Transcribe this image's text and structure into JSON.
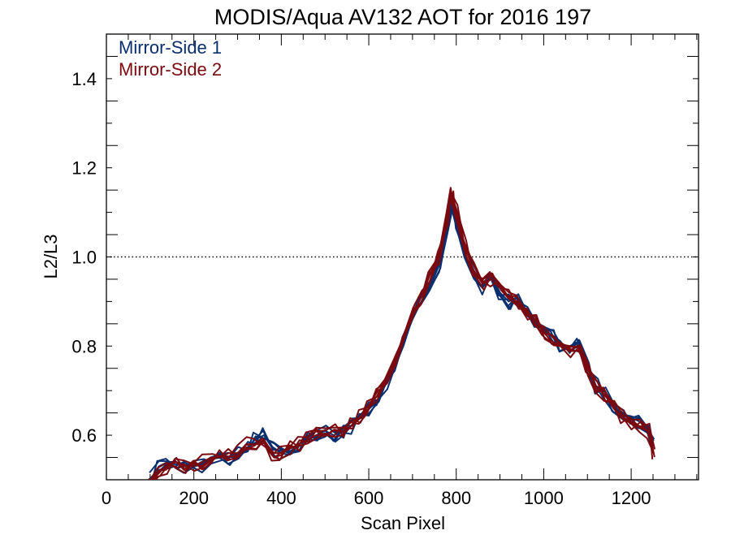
{
  "chart_data": {
    "type": "line",
    "title": "MODIS/Aqua AV132 AOT for 2016 197",
    "xlabel": "Scan Pixel",
    "ylabel": "L2/L3",
    "xlim": [
      0,
      1354
    ],
    "ylim": [
      0.5,
      1.5
    ],
    "x_ticks": [
      0,
      200,
      400,
      600,
      800,
      1000,
      1200
    ],
    "y_ticks": [
      0.6,
      0.8,
      1.0,
      1.2,
      1.4
    ],
    "x_tick_labels": [
      "0",
      "200",
      "400",
      "600",
      "800",
      "1000",
      "1200"
    ],
    "y_tick_labels": [
      "0.6",
      "0.8",
      "1.0",
      "1.2",
      "1.4"
    ],
    "reference_line": {
      "y": 1.0,
      "style": "dotted"
    },
    "legend_position": "top-left",
    "x": [
      100,
      120,
      140,
      160,
      180,
      200,
      220,
      240,
      260,
      280,
      300,
      320,
      340,
      360,
      380,
      400,
      420,
      440,
      460,
      480,
      500,
      520,
      540,
      560,
      580,
      600,
      620,
      640,
      660,
      680,
      700,
      720,
      740,
      760,
      780,
      790,
      800,
      820,
      840,
      860,
      880,
      900,
      920,
      940,
      960,
      980,
      1000,
      1020,
      1040,
      1060,
      1080,
      1100,
      1120,
      1140,
      1160,
      1180,
      1200,
      1220,
      1240,
      1250
    ],
    "series": [
      {
        "name": "Mirror-Side 1",
        "color": "#0a2f6e",
        "values": [
          0.5,
          0.53,
          0.54,
          0.54,
          0.53,
          0.54,
          0.53,
          0.55,
          0.55,
          0.55,
          0.56,
          0.57,
          0.59,
          0.6,
          0.57,
          0.56,
          0.57,
          0.58,
          0.59,
          0.6,
          0.61,
          0.6,
          0.61,
          0.62,
          0.64,
          0.66,
          0.68,
          0.72,
          0.76,
          0.81,
          0.86,
          0.9,
          0.94,
          0.98,
          1.06,
          1.12,
          1.08,
          1.0,
          0.96,
          0.93,
          0.96,
          0.92,
          0.9,
          0.91,
          0.88,
          0.86,
          0.84,
          0.82,
          0.8,
          0.79,
          0.8,
          0.76,
          0.71,
          0.7,
          0.66,
          0.65,
          0.64,
          0.63,
          0.62,
          0.58
        ]
      },
      {
        "name": "Mirror-Side 2",
        "color": "#7a0a0f",
        "values": [
          0.5,
          0.52,
          0.53,
          0.54,
          0.53,
          0.53,
          0.54,
          0.55,
          0.55,
          0.56,
          0.56,
          0.58,
          0.58,
          0.59,
          0.56,
          0.56,
          0.57,
          0.58,
          0.59,
          0.6,
          0.6,
          0.61,
          0.61,
          0.63,
          0.64,
          0.66,
          0.69,
          0.73,
          0.77,
          0.82,
          0.87,
          0.91,
          0.96,
          1.0,
          1.09,
          1.14,
          1.1,
          1.02,
          0.97,
          0.94,
          0.95,
          0.93,
          0.91,
          0.9,
          0.87,
          0.86,
          0.83,
          0.81,
          0.8,
          0.79,
          0.79,
          0.75,
          0.71,
          0.69,
          0.66,
          0.64,
          0.63,
          0.62,
          0.61,
          0.56
        ]
      }
    ]
  }
}
